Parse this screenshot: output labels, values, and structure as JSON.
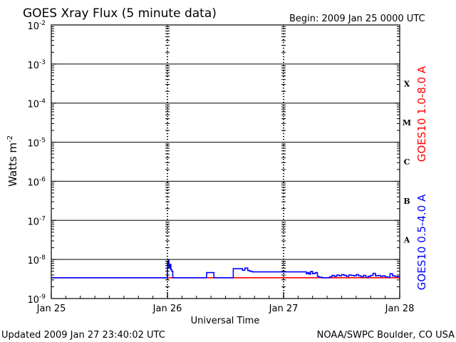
{
  "colors": {
    "primary": "#0000ff",
    "secondary": "#ff0000",
    "axis": "#000000"
  },
  "chart_data": {
    "type": "line",
    "title": "GOES Xray Flux (5 minute data)",
    "begin_text": "Begin:  2009 Jan 25 0000 UTC",
    "xlabel": "Universal Time",
    "ylabel": "Watts m",
    "ylabel_sup": "-2",
    "y_scale": "log",
    "ylim": [
      1e-09,
      0.01
    ],
    "xlim": [
      0,
      72
    ],
    "grid": true,
    "y_ticks": [
      {
        "exp": -9,
        "label": "10",
        "sup": "-9"
      },
      {
        "exp": -8,
        "label": "10",
        "sup": "-8"
      },
      {
        "exp": -7,
        "label": "10",
        "sup": "-7"
      },
      {
        "exp": -6,
        "label": "10",
        "sup": "-6"
      },
      {
        "exp": -5,
        "label": "10",
        "sup": "-5"
      },
      {
        "exp": -4,
        "label": "10",
        "sup": "-4"
      },
      {
        "exp": -3,
        "label": "10",
        "sup": "-3"
      },
      {
        "exp": -2,
        "label": "10",
        "sup": "-2"
      }
    ],
    "x_ticks": [
      {
        "hour": 0,
        "label": "Jan 25"
      },
      {
        "hour": 24,
        "label": "Jan 26"
      },
      {
        "hour": 48,
        "label": "Jan 27"
      },
      {
        "hour": 72,
        "label": "Jan 28"
      }
    ],
    "flare_classes": [
      {
        "label": "X",
        "exp": -4
      },
      {
        "label": "M",
        "exp": -5
      },
      {
        "label": "C",
        "exp": -6
      },
      {
        "label": "B",
        "exp": -7
      },
      {
        "label": "A",
        "exp": -8
      }
    ],
    "series": [
      {
        "name": "GOES10 1.0-8.0 A",
        "color": "#ff0000",
        "x": [
          0,
          24,
          72
        ],
        "y": [
          3.4e-09,
          3.4e-09,
          3.4e-09
        ]
      },
      {
        "name": "GOES10 0.5-4.0 A",
        "color": "#0000ff",
        "x": [
          0,
          23.9,
          24.0,
          24.15,
          24.3,
          24.5,
          24.7,
          24.9,
          25.1,
          25.4,
          32.0,
          32.1,
          33.5,
          33.6,
          37.5,
          37.6,
          38.0,
          39.5,
          40.0,
          40.6,
          41.0,
          41.5,
          48.0,
          52.5,
          52.7,
          53.0,
          53.3,
          53.6,
          54.0,
          54.3,
          54.6,
          55.0,
          55.3,
          55.6,
          56.0,
          56.5,
          57.0,
          57.5,
          58.0,
          58.5,
          59.0,
          59.5,
          60.0,
          60.5,
          61.0,
          61.5,
          62.0,
          62.5,
          63.0,
          63.5,
          64.0,
          64.5,
          65.0,
          65.5,
          66.0,
          66.5,
          67.0,
          67.5,
          68.0,
          68.5,
          69.0,
          69.5,
          70.0,
          70.5,
          71.0,
          71.5,
          72.0
        ],
        "y": [
          3.4e-09,
          3.4e-09,
          8e-09,
          9.5e-09,
          6e-09,
          7.5e-09,
          5.5e-09,
          5e-09,
          3.4e-09,
          3.4e-09,
          3.4e-09,
          4.6e-09,
          4.6e-09,
          3.4e-09,
          3.4e-09,
          5.8e-09,
          5.8e-09,
          5.3e-09,
          6e-09,
          5.2e-09,
          5e-09,
          4.8e-09,
          4.8e-09,
          4.8e-09,
          4.3e-09,
          4.6e-09,
          4.2e-09,
          4.9e-09,
          4.3e-09,
          4.4e-09,
          4.6e-09,
          3.7e-09,
          3.5e-09,
          3.5e-09,
          3.4e-09,
          3.4e-09,
          3.4e-09,
          3.6e-09,
          3.9e-09,
          3.7e-09,
          4e-09,
          3.8e-09,
          4.1e-09,
          3.9e-09,
          3.7e-09,
          4e-09,
          3.9e-09,
          3.8e-09,
          4.1e-09,
          3.8e-09,
          3.6e-09,
          3.9e-09,
          3.5e-09,
          3.7e-09,
          3.9e-09,
          4.4e-09,
          3.8e-09,
          3.9e-09,
          3.7e-09,
          3.8e-09,
          3.6e-09,
          3.5e-09,
          4.3e-09,
          3.8e-09,
          3.7e-09,
          3.6e-09,
          3.5e-09
        ]
      }
    ]
  },
  "footer": {
    "updated": "Updated 2009 Jan 27 23:40:02 UTC",
    "source": "NOAA/SWPC Boulder, CO USA"
  }
}
